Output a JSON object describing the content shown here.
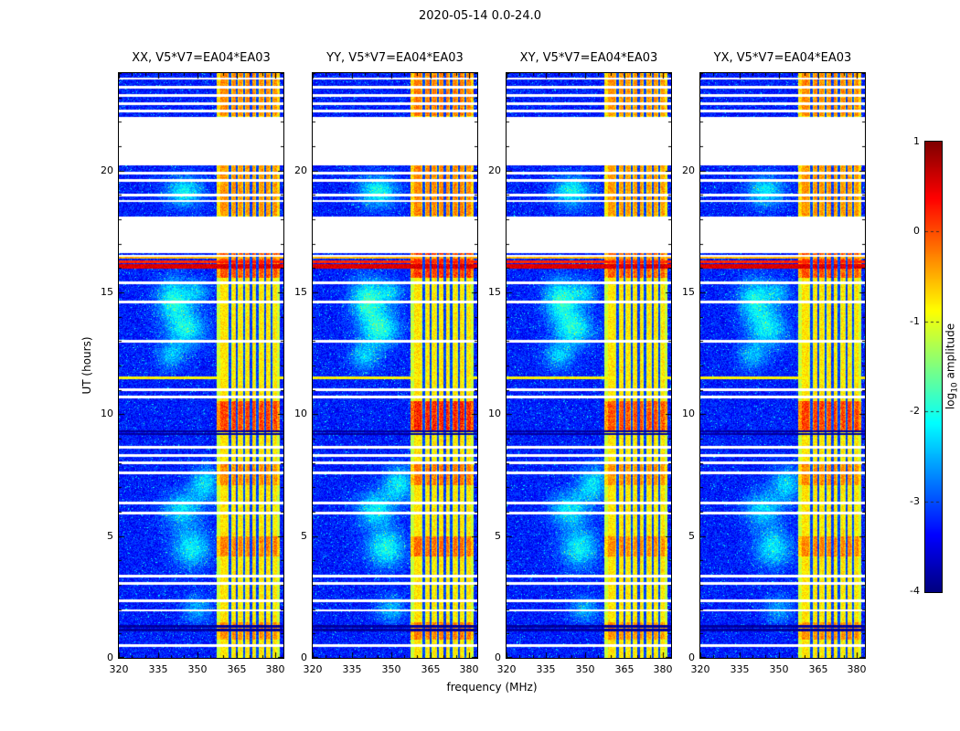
{
  "figure_title": "2020-05-14 0.0-24.0",
  "axes": {
    "xlabel": "frequency (MHz)",
    "ylabel": "UT (hours)"
  },
  "colorbar": {
    "label_prefix": "log",
    "label_sub": "10",
    "label_suffix": " amplitude",
    "vmin": -4,
    "vmax": 1,
    "colormap": "jet",
    "ticks": [
      1,
      0,
      -1,
      -2,
      -3,
      -4
    ],
    "tick_labels": [
      "1",
      "0",
      "-1",
      "-2",
      "-3",
      "-4"
    ],
    "dashed_gridline_ticks": [
      0,
      -1,
      -2,
      -3
    ]
  },
  "chart_data": {
    "type": "heatmap",
    "panels": [
      {
        "title": "XX, V5*V7=EA04*EA03",
        "seed": 101,
        "band_hot_scale": 1.0,
        "blob_scale": 1.0
      },
      {
        "title": "YY, V5*V7=EA04*EA03",
        "seed": 202,
        "band_hot_scale": 1.2,
        "blob_scale": 1.1
      },
      {
        "title": "XY, V5*V7=EA04*EA03",
        "seed": 303,
        "band_hot_scale": 0.9,
        "blob_scale": 1.05
      },
      {
        "title": "YX, V5*V7=EA04*EA03",
        "seed": 404,
        "band_hot_scale": 1.0,
        "blob_scale": 0.95
      }
    ],
    "x_range": [
      320,
      383
    ],
    "x_ticks": [
      320,
      335,
      350,
      365,
      380
    ],
    "x_minor_step": 5,
    "y_range": [
      0,
      24
    ],
    "y_ticks": [
      0,
      5,
      10,
      15,
      20
    ],
    "y_minor_step": 1,
    "background": {
      "level_min": -3.6,
      "level_max": -2.9,
      "speckle_prob": 0.02,
      "speckle_level": -2.3
    },
    "data_gaps_hours": [
      [
        20.2,
        22.2
      ],
      [
        16.6,
        18.1
      ]
    ],
    "rfi_band": {
      "freq_start": 357.5,
      "freq_end": 381.5,
      "base_level": -1.15,
      "bright_columns": [
        359.5,
        361,
        364,
        366.5,
        369.5,
        371.5,
        374.5,
        377,
        380
      ],
      "dark_columns": [
        362.5,
        365.2,
        368,
        370.5,
        373,
        376,
        378.5
      ],
      "hot_intervals": [
        [
          22.25,
          24.0,
          0.55
        ],
        [
          18.15,
          20.2,
          0.5
        ],
        [
          15.6,
          16.6,
          0.9
        ],
        [
          9.25,
          10.55,
          1.0
        ],
        [
          7.1,
          7.95,
          0.55
        ],
        [
          4.15,
          5.0,
          0.6
        ],
        [
          0.75,
          1.45,
          0.55
        ]
      ]
    },
    "flagged_white_rows": [
      23.78,
      23.42,
      23.08,
      22.75,
      22.45,
      19.9,
      19.6,
      19.0,
      18.75,
      16.5,
      15.4,
      14.6,
      13.0,
      11.0,
      10.7,
      8.65,
      8.3,
      8.0,
      7.6,
      6.35,
      5.95,
      3.35,
      3.05,
      2.35,
      1.95,
      0.5
    ],
    "black_rows": [
      9.18,
      9.3,
      1.15,
      1.3
    ],
    "bright_rows": [
      {
        "t": 16.07,
        "height": 0.18,
        "level": 0.55
      },
      {
        "t": 16.25,
        "height": 0.1,
        "level": 0.2
      },
      {
        "t": 16.42,
        "height": 0.06,
        "level": -0.5
      },
      {
        "t": 11.5,
        "height": 0.12,
        "level": -0.85
      }
    ],
    "emission_blobs": [
      {
        "t": 19.15,
        "f": 345,
        "dt": 0.45,
        "df": 5,
        "amp": 1.1
      },
      {
        "t": 14.7,
        "f": 341,
        "dt": 0.6,
        "df": 4.5,
        "amp": 1.25
      },
      {
        "t": 13.5,
        "f": 346,
        "dt": 0.5,
        "df": 5,
        "amp": 1.15
      },
      {
        "t": 12.4,
        "f": 340,
        "dt": 0.4,
        "df": 4,
        "amp": 0.8
      },
      {
        "t": 15.0,
        "f": 350,
        "dt": 0.35,
        "df": 3.5,
        "amp": 0.7
      },
      {
        "t": 7.15,
        "f": 353,
        "dt": 0.5,
        "df": 4,
        "amp": 1.0
      },
      {
        "t": 6.1,
        "f": 344,
        "dt": 0.5,
        "df": 5,
        "amp": 1.0
      },
      {
        "t": 4.5,
        "f": 348,
        "dt": 0.55,
        "df": 5,
        "amp": 1.1
      },
      {
        "t": 2.0,
        "f": 350,
        "dt": 0.4,
        "df": 4,
        "amp": 0.7
      }
    ]
  }
}
